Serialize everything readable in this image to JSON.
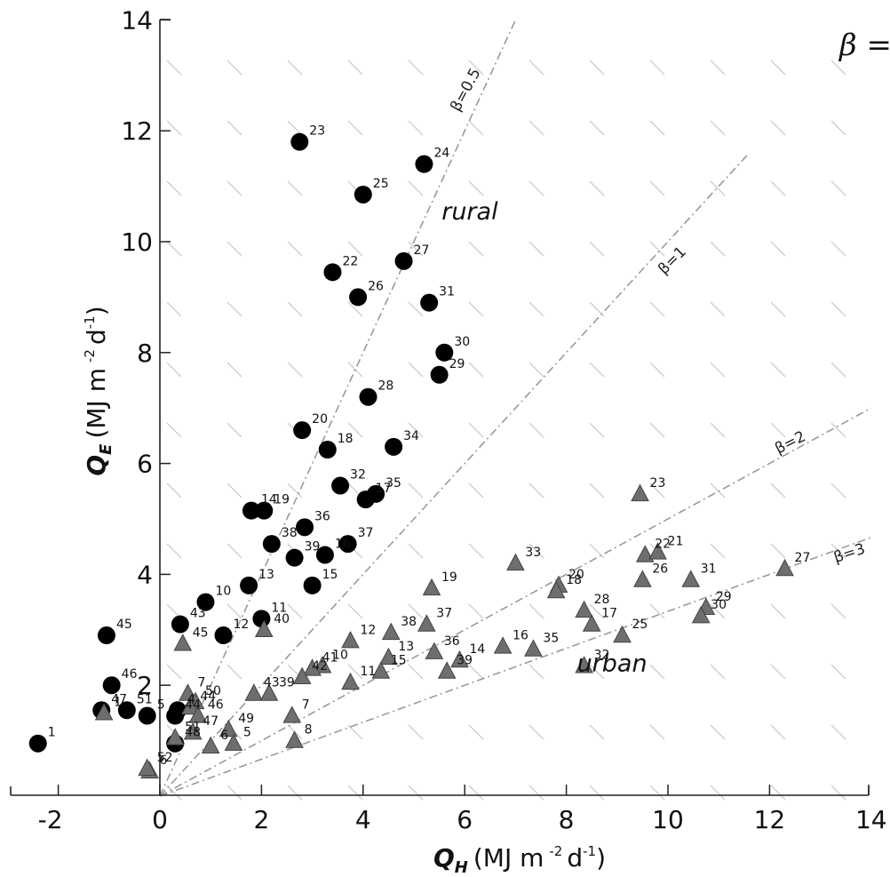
{
  "chart_data": {
    "type": "scatter",
    "xlabel": "Q_H (MJ m -2 d-1)",
    "ylabel": "Q_E (MJ m -2 d-1)",
    "xlabel_parts": {
      "symbol": "Q",
      "sub": "H",
      "unit": "(MJ m",
      "exp1": "-2",
      "unit2": "d",
      "exp2": "-1",
      "close": ")"
    },
    "ylabel_parts": {
      "symbol": "Q",
      "sub": "E",
      "unit": "(MJ m",
      "exp1": "-2",
      "unit2": "d",
      "exp2": "-1",
      "close": ")"
    },
    "xlim": [
      -2.7,
      14
    ],
    "ylim": [
      -0.55,
      14
    ],
    "xticks": [
      -2,
      0,
      2,
      4,
      6,
      8,
      10,
      12,
      14
    ],
    "yticks": [
      2,
      4,
      6,
      8,
      10,
      12,
      14
    ],
    "grid": false,
    "corner_label": "β =",
    "zone_labels": [
      {
        "text": "rural",
        "x": 6.1,
        "y": 10.4
      },
      {
        "text": "urban",
        "x": 8.9,
        "y": 2.25
      }
    ],
    "beta_lines": [
      {
        "label": "β=0.5",
        "slope": 2.0,
        "x_end": 7.0
      },
      {
        "label": "β=1",
        "slope": 1.0,
        "x_end": 11.6
      },
      {
        "label": "β=2",
        "slope": 0.5,
        "x_end": 14.0
      },
      {
        "label": "β=3",
        "slope": 0.3333,
        "x_end": 14.0
      }
    ],
    "series": [
      {
        "name": "rural",
        "marker": "circle",
        "color": "#000000",
        "points": [
          {
            "x": -2.4,
            "y": 0.95,
            "label": "1"
          },
          {
            "x": 2.75,
            "y": 11.8,
            "label": "23"
          },
          {
            "x": 5.2,
            "y": 11.4,
            "label": "24"
          },
          {
            "x": 4.0,
            "y": 10.85,
            "label": "25"
          },
          {
            "x": 4.8,
            "y": 9.65,
            "label": "27"
          },
          {
            "x": 3.4,
            "y": 9.45,
            "label": "22"
          },
          {
            "x": 3.9,
            "y": 9.0,
            "label": "26"
          },
          {
            "x": 5.3,
            "y": 8.9,
            "label": "31"
          },
          {
            "x": 5.6,
            "y": 8.0,
            "label": "30"
          },
          {
            "x": 5.5,
            "y": 7.6,
            "label": "29"
          },
          {
            "x": 4.1,
            "y": 7.2,
            "label": "28"
          },
          {
            "x": 2.8,
            "y": 6.6,
            "label": "20"
          },
          {
            "x": 3.3,
            "y": 6.25,
            "label": "18"
          },
          {
            "x": 4.6,
            "y": 6.3,
            "label": "34"
          },
          {
            "x": 3.55,
            "y": 5.6,
            "label": "32"
          },
          {
            "x": 4.25,
            "y": 5.45,
            "label": "35"
          },
          {
            "x": 4.05,
            "y": 5.35,
            "label": "17"
          },
          {
            "x": 1.8,
            "y": 5.15,
            "label": "14"
          },
          {
            "x": 2.05,
            "y": 5.15,
            "label": "19"
          },
          {
            "x": 2.85,
            "y": 4.85,
            "label": "36"
          },
          {
            "x": 2.2,
            "y": 4.55,
            "label": "38"
          },
          {
            "x": 3.7,
            "y": 4.55,
            "label": "37"
          },
          {
            "x": 2.65,
            "y": 4.3,
            "label": "39"
          },
          {
            "x": 3.25,
            "y": 4.35,
            "label": "16"
          },
          {
            "x": 1.75,
            "y": 3.8,
            "label": "13"
          },
          {
            "x": 3.0,
            "y": 3.8,
            "label": "15"
          },
          {
            "x": 0.9,
            "y": 3.5,
            "label": "10"
          },
          {
            "x": 2.0,
            "y": 3.2,
            "label": "11"
          },
          {
            "x": 0.4,
            "y": 3.1,
            "label": "43"
          },
          {
            "x": 1.25,
            "y": 2.9,
            "label": "12"
          },
          {
            "x": -1.05,
            "y": 2.9,
            "label": "45"
          },
          {
            "x": -0.95,
            "y": 2.0,
            "label": "46"
          },
          {
            "x": -1.15,
            "y": 1.55,
            "label": "47"
          },
          {
            "x": -0.65,
            "y": 1.55,
            "label": "51"
          },
          {
            "x": -0.25,
            "y": 1.45,
            "label": "5"
          },
          {
            "x": 0.35,
            "y": 1.55,
            "label": "4"
          },
          {
            "x": 0.3,
            "y": 1.45,
            "label": "44"
          },
          {
            "x": 0.3,
            "y": 0.95,
            "label": "48"
          }
        ]
      },
      {
        "name": "urban",
        "marker": "triangle",
        "color": "#6e6e6e",
        "points": [
          {
            "x": 9.45,
            "y": 5.45,
            "label": "23"
          },
          {
            "x": 9.55,
            "y": 4.35,
            "label": "22"
          },
          {
            "x": 9.8,
            "y": 4.4,
            "label": "21"
          },
          {
            "x": 12.3,
            "y": 4.1,
            "label": "27"
          },
          {
            "x": 7.0,
            "y": 4.2,
            "label": "33"
          },
          {
            "x": 9.5,
            "y": 3.9,
            "label": "26"
          },
          {
            "x": 10.45,
            "y": 3.9,
            "label": "31"
          },
          {
            "x": 5.35,
            "y": 3.75,
            "label": "19"
          },
          {
            "x": 7.85,
            "y": 3.8,
            "label": "20"
          },
          {
            "x": 7.8,
            "y": 3.7,
            "label": "18"
          },
          {
            "x": 8.35,
            "y": 3.35,
            "label": "28"
          },
          {
            "x": 10.75,
            "y": 3.4,
            "label": "29"
          },
          {
            "x": 8.5,
            "y": 3.1,
            "label": "17"
          },
          {
            "x": 10.65,
            "y": 3.25,
            "label": "30"
          },
          {
            "x": 9.1,
            "y": 2.9,
            "label": "25"
          },
          {
            "x": 5.25,
            "y": 3.1,
            "label": "37"
          },
          {
            "x": 4.55,
            "y": 2.95,
            "label": "38"
          },
          {
            "x": 6.75,
            "y": 2.7,
            "label": "16"
          },
          {
            "x": 7.35,
            "y": 2.65,
            "label": "35"
          },
          {
            "x": 3.75,
            "y": 2.8,
            "label": "12"
          },
          {
            "x": 5.4,
            "y": 2.6,
            "label": "36"
          },
          {
            "x": 5.9,
            "y": 2.45,
            "label": "14"
          },
          {
            "x": 4.5,
            "y": 2.5,
            "label": "13"
          },
          {
            "x": 8.35,
            "y": 2.35,
            "label": "32"
          },
          {
            "x": 5.65,
            "y": 2.25,
            "label": "39"
          },
          {
            "x": 3.2,
            "y": 2.35,
            "label": "10"
          },
          {
            "x": 3.0,
            "y": 2.3,
            "label": "41"
          },
          {
            "x": 4.35,
            "y": 2.25,
            "label": "15"
          },
          {
            "x": 2.8,
            "y": 2.15,
            "label": "42"
          },
          {
            "x": 3.75,
            "y": 2.05,
            "label": "11"
          },
          {
            "x": 0.45,
            "y": 2.75,
            "label": "45"
          },
          {
            "x": 2.05,
            "y": 3.0,
            "label": "40"
          },
          {
            "x": 1.85,
            "y": 1.85,
            "label": "43"
          },
          {
            "x": 2.15,
            "y": 1.85,
            "label": "39"
          },
          {
            "x": 0.55,
            "y": 1.85,
            "label": "7"
          },
          {
            "x": 0.7,
            "y": 1.7,
            "label": "50"
          },
          {
            "x": 0.6,
            "y": 1.6,
            "label": "44"
          },
          {
            "x": 0.75,
            "y": 1.45,
            "label": "46"
          },
          {
            "x": 2.6,
            "y": 1.45,
            "label": "7"
          },
          {
            "x": 1.35,
            "y": 1.2,
            "label": "49"
          },
          {
            "x": 0.65,
            "y": 1.15,
            "label": "47"
          },
          {
            "x": 1.45,
            "y": 0.95,
            "label": "5"
          },
          {
            "x": 2.65,
            "y": 1.0,
            "label": "8"
          },
          {
            "x": 0.3,
            "y": 1.05,
            "label": "51"
          },
          {
            "x": 1.0,
            "y": 0.9,
            "label": "6"
          },
          {
            "x": -1.1,
            "y": 1.5,
            "label": "1"
          },
          {
            "x": -0.2,
            "y": 0.45,
            "label": "6"
          },
          {
            "x": -0.25,
            "y": 0.5,
            "label": "52"
          }
        ]
      }
    ]
  }
}
